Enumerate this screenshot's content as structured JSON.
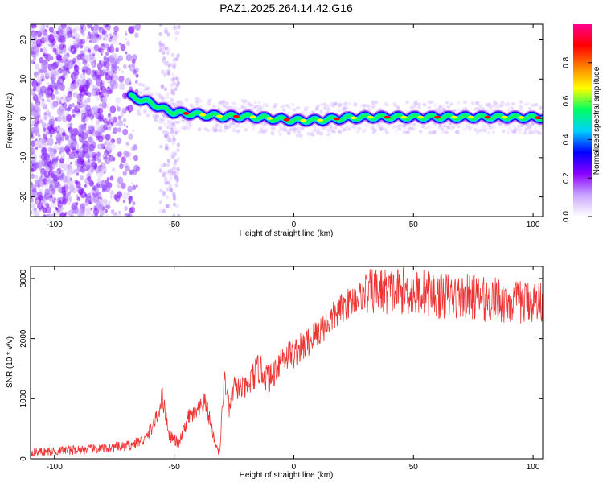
{
  "title": "PAZ1.2025.264.14.42.G16",
  "chart_data": [
    {
      "type": "heatmap",
      "xlabel": "Height of straight line (km)",
      "ylabel": "Frequency (Hz)",
      "xlim": [
        -110,
        104
      ],
      "ylim": [
        -25,
        24
      ],
      "xticks": [
        -100,
        -50,
        0,
        50,
        100
      ],
      "yticks": [
        -20,
        -10,
        0,
        10,
        20
      ],
      "colorbar": {
        "label": "Normalized spectral amplitude",
        "range": [
          0,
          1
        ],
        "ticks": [
          "0.0",
          "0.2",
          "0.4",
          "0.6",
          "0.8"
        ],
        "colors": [
          "#ffffff",
          "#c9a6ff",
          "#8a00ff",
          "#0000ff",
          "#00d0ff",
          "#00ff60",
          "#ffff00",
          "#ff8000",
          "#ff0000",
          "#ff0090"
        ]
      },
      "ridge": {
        "x": [
          -68,
          -60,
          -55,
          -50,
          -40,
          -30,
          -20,
          -10,
          0,
          10,
          20,
          30,
          40,
          50,
          60,
          70,
          80,
          90,
          100
        ],
        "freq": [
          5.5,
          4,
          2.5,
          1.5,
          1,
          0.5,
          0.5,
          0,
          -0.5,
          -0.5,
          0,
          0.3,
          0.3,
          0.3,
          0.3,
          0.3,
          0.3,
          0.3,
          0.2
        ]
      }
    },
    {
      "type": "line",
      "xlabel": "Height of straight line (km)",
      "ylabel": "SNR (10 * v/v)",
      "xlim": [
        -110,
        104
      ],
      "ylim": [
        0,
        3200
      ],
      "xticks": [
        -100,
        -50,
        0,
        50,
        100
      ],
      "yticks": [
        0,
        1000,
        2000,
        3000
      ],
      "color": "#ee3333",
      "series": {
        "x": [
          -110,
          -100,
          -90,
          -80,
          -70,
          -62,
          -57,
          -55,
          -52,
          -48,
          -44,
          -40,
          -37,
          -33,
          -31,
          -29,
          -27,
          -25,
          -20,
          -15,
          -12,
          -10,
          -5,
          0,
          5,
          10,
          15,
          20,
          25,
          30,
          35,
          40,
          45,
          50,
          55,
          60,
          65,
          70,
          75,
          80,
          85,
          90,
          95,
          100,
          104
        ],
        "values": [
          110,
          130,
          150,
          170,
          210,
          320,
          700,
          1050,
          400,
          240,
          700,
          780,
          950,
          300,
          80,
          1400,
          800,
          1200,
          1150,
          1500,
          1400,
          1300,
          1700,
          1750,
          1900,
          2100,
          2300,
          2500,
          2650,
          2750,
          2800,
          2780,
          2800,
          2750,
          2780,
          2700,
          2720,
          2680,
          2700,
          2650,
          2650,
          2600,
          2600,
          2620,
          2620
        ]
      }
    }
  ]
}
